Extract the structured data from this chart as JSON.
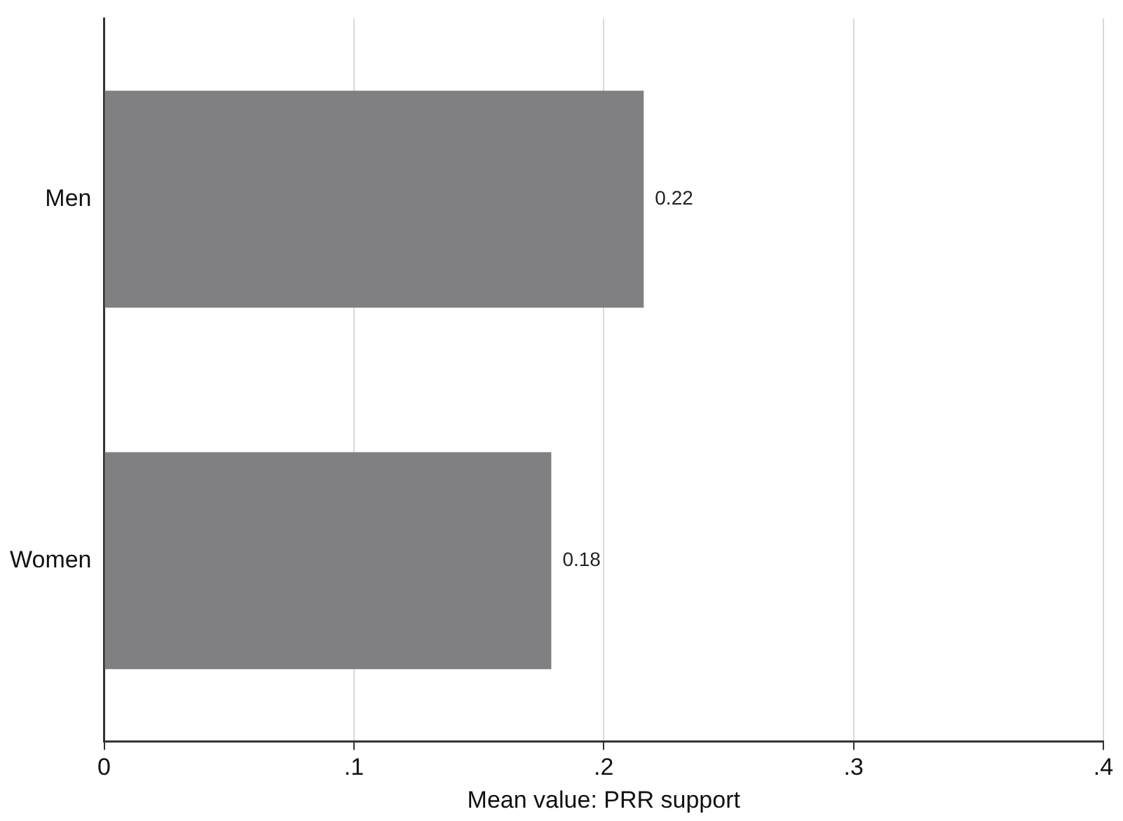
{
  "chart_data": {
    "type": "bar",
    "orientation": "horizontal",
    "categories": [
      "Men",
      "Women"
    ],
    "values": [
      0.216,
      0.179
    ],
    "value_labels": [
      "0.22",
      "0.18"
    ],
    "color": "#808083",
    "xlabel": "Mean value: PRR support",
    "xlim": [
      0,
      0.4
    ],
    "xticks": [
      0,
      {
        "value": 0.1,
        "label": ".1"
      },
      {
        "value": 0.2,
        "label": ".2"
      },
      {
        "value": 0.3,
        "label": ".3"
      },
      {
        "value": 0.4,
        "label": ".4"
      }
    ],
    "grid": "x",
    "legend": false
  }
}
